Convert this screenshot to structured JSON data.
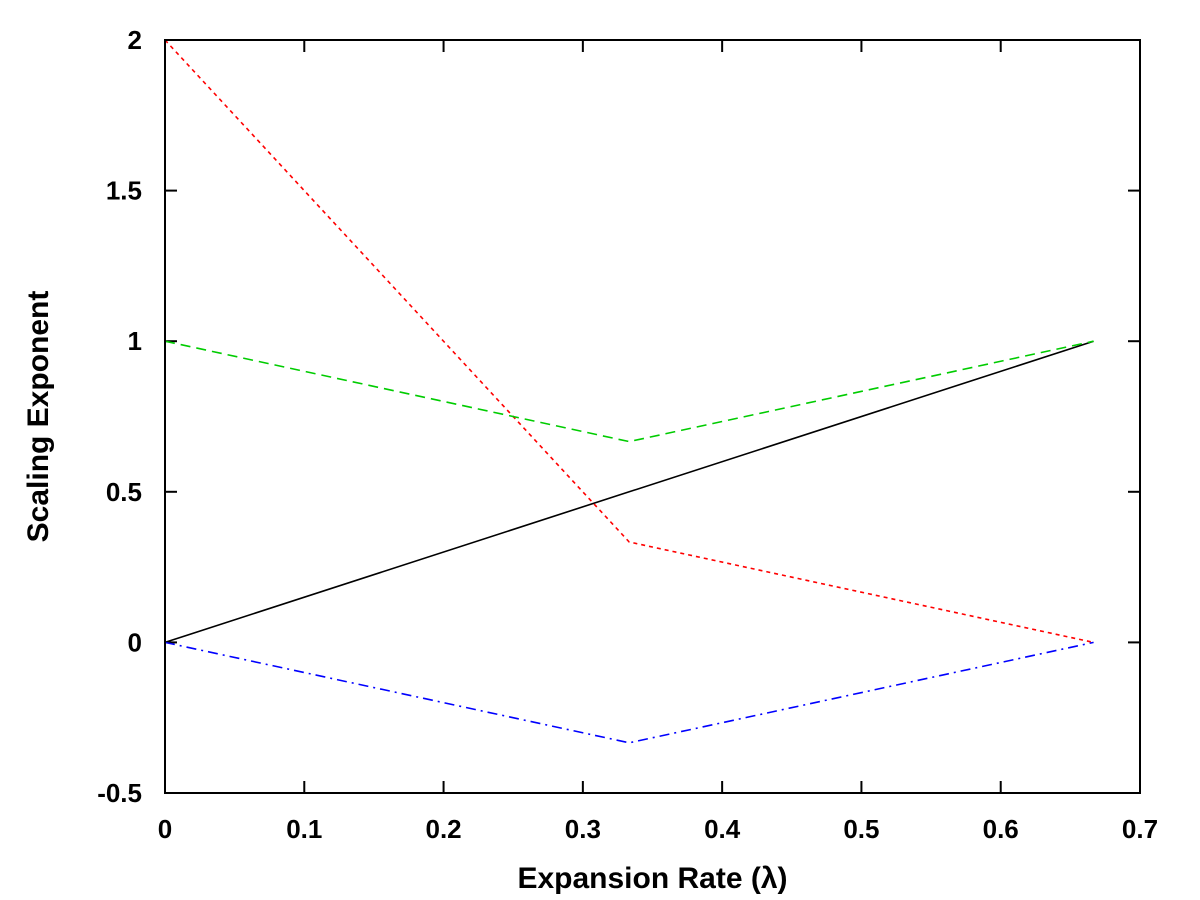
{
  "chart_data": {
    "type": "line",
    "xlabel": "Expansion Rate (λ)",
    "ylabel": "Scaling Exponent",
    "xlim": [
      0,
      0.7
    ],
    "ylim": [
      -0.5,
      2
    ],
    "xticks": [
      0,
      0.1,
      0.2,
      0.3,
      0.4,
      0.5,
      0.6,
      0.7
    ],
    "yticks": [
      -0.5,
      0,
      0.5,
      1,
      1.5,
      2
    ],
    "xtick_labels": [
      "0",
      "0.1",
      "0.2",
      "0.3",
      "0.4",
      "0.5",
      "0.6",
      "0.7"
    ],
    "ytick_labels": [
      "-0.5",
      "0",
      "0.5",
      "1",
      "1.5",
      "2"
    ],
    "grid": false,
    "legend": "none",
    "series": [
      {
        "x": [
          0,
          0.3333,
          0.6667
        ],
        "values": [
          0,
          0.5,
          1
        ],
        "color": "#000000",
        "style": "solid"
      },
      {
        "x": [
          0,
          0.3333,
          0.6667
        ],
        "values": [
          2,
          0.3333,
          0
        ],
        "color": "#ff0000",
        "style": "dotted"
      },
      {
        "x": [
          0,
          0.3333,
          0.6667
        ],
        "values": [
          1,
          0.6667,
          1
        ],
        "color": "#00cc00",
        "style": "dashed"
      },
      {
        "x": [
          0,
          0.3333,
          0.6667
        ],
        "values": [
          0,
          -0.3333,
          0
        ],
        "color": "#0000ff",
        "style": "dashdot"
      }
    ]
  }
}
